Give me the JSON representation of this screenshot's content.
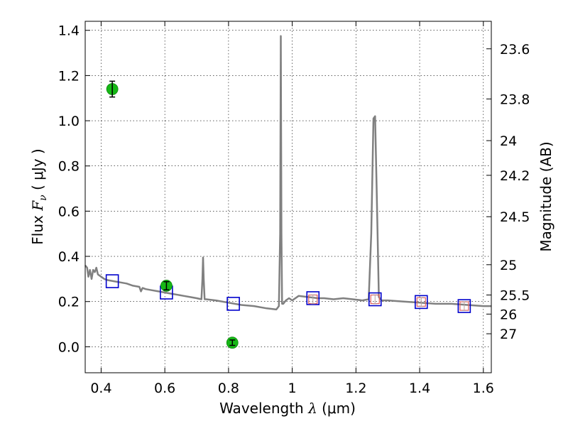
{
  "chart_data": {
    "type": "scatter",
    "xlabel": "Wavelength  λ (μm)",
    "xlabel_parts": {
      "text": "Wavelength  ",
      "symbol": "λ",
      "unit": " (μm)"
    },
    "ylabel": "Flux  Fν  ( μJy )",
    "ylabel_parts": {
      "text": "Flux  ",
      "symbol": "F",
      "subscript": "ν",
      "unit": "  ( μJy )"
    },
    "y2label": "Magnitude (AB)",
    "xlim": [
      0.35,
      1.625
    ],
    "ylim": [
      -0.115,
      1.44
    ],
    "grid": true,
    "x_ticks": [
      {
        "value": 0.4,
        "label": "0.4"
      },
      {
        "value": 0.6,
        "label": "0.6"
      },
      {
        "value": 0.8,
        "label": "0.8"
      },
      {
        "value": 1.0,
        "label": "1"
      },
      {
        "value": 1.2,
        "label": "1.2"
      },
      {
        "value": 1.4,
        "label": "1.4"
      },
      {
        "value": 1.6,
        "label": "1.6"
      }
    ],
    "y_ticks": [
      {
        "value": 0.0,
        "label": "0.0"
      },
      {
        "value": 0.2,
        "label": "0.2"
      },
      {
        "value": 0.4,
        "label": "0.4"
      },
      {
        "value": 0.6,
        "label": "0.6"
      },
      {
        "value": 0.8,
        "label": "0.8"
      },
      {
        "value": 1.0,
        "label": "1.0"
      },
      {
        "value": 1.2,
        "label": "1.2"
      },
      {
        "value": 1.4,
        "label": "1.4"
      }
    ],
    "magnitude_ticks": [
      {
        "value": 23.6,
        "label": "23.6"
      },
      {
        "value": 23.8,
        "label": "23.8"
      },
      {
        "value": 24.0,
        "label": "24"
      },
      {
        "value": 24.2,
        "label": "24.2"
      },
      {
        "value": 24.5,
        "label": "24.5"
      },
      {
        "value": 25.0,
        "label": "25"
      },
      {
        "value": 25.5,
        "label": "25.5"
      },
      {
        "value": 26.0,
        "label": "26"
      },
      {
        "value": 27.0,
        "label": "27"
      }
    ],
    "series": [
      {
        "kind": "model-spectrum",
        "color": "#808080",
        "x": [
          0.35,
          0.356,
          0.36,
          0.365,
          0.37,
          0.375,
          0.38,
          0.385,
          0.39,
          0.4,
          0.41,
          0.42,
          0.44,
          0.46,
          0.48,
          0.5,
          0.52,
          0.525,
          0.53,
          0.54,
          0.56,
          0.58,
          0.6,
          0.62,
          0.64,
          0.66,
          0.68,
          0.7,
          0.715,
          0.718,
          0.72,
          0.722,
          0.725,
          0.73,
          0.76,
          0.8,
          0.84,
          0.88,
          0.92,
          0.95,
          0.958,
          0.962,
          0.964,
          0.966,
          0.968,
          0.972,
          0.98,
          0.99,
          1.0,
          1.02,
          1.05,
          1.08,
          1.1,
          1.13,
          1.16,
          1.19,
          1.22,
          1.24,
          1.248,
          1.255,
          1.26,
          1.265,
          1.272,
          1.28,
          1.3,
          1.35,
          1.4,
          1.45,
          1.5,
          1.55,
          1.6,
          1.625
        ],
        "y": [
          0.36,
          0.35,
          0.31,
          0.34,
          0.3,
          0.34,
          0.33,
          0.35,
          0.32,
          0.31,
          0.3,
          0.295,
          0.29,
          0.285,
          0.28,
          0.27,
          0.265,
          0.245,
          0.26,
          0.255,
          0.25,
          0.245,
          0.24,
          0.235,
          0.23,
          0.225,
          0.22,
          0.215,
          0.21,
          0.3,
          0.395,
          0.3,
          0.21,
          0.21,
          0.205,
          0.195,
          0.185,
          0.18,
          0.17,
          0.165,
          0.18,
          0.5,
          1.375,
          0.5,
          0.19,
          0.19,
          0.205,
          0.215,
          0.205,
          0.225,
          0.22,
          0.215,
          0.215,
          0.21,
          0.215,
          0.21,
          0.205,
          0.21,
          0.5,
          1.01,
          1.02,
          0.7,
          0.22,
          0.205,
          0.205,
          0.2,
          0.195,
          0.19,
          0.19,
          0.185,
          0.18,
          0.18
        ]
      },
      {
        "kind": "observed",
        "marker": "circle",
        "color": "#16b816",
        "points": [
          {
            "x": 0.435,
            "y": 1.14,
            "yerr": 0.035
          },
          {
            "x": 0.605,
            "y": 0.27,
            "yerr": 0.018
          },
          {
            "x": 0.812,
            "y": 0.018,
            "yerr": 0.012
          }
        ]
      },
      {
        "kind": "model-photometry",
        "marker": "square",
        "color": "#0000cc",
        "points": [
          {
            "x": 0.435,
            "y": 0.29
          },
          {
            "x": 0.605,
            "y": 0.24
          },
          {
            "x": 0.815,
            "y": 0.19
          },
          {
            "x": 1.065,
            "y": 0.215
          },
          {
            "x": 1.26,
            "y": 0.21
          },
          {
            "x": 1.405,
            "y": 0.198
          },
          {
            "x": 1.54,
            "y": 0.18
          }
        ]
      },
      {
        "kind": "observed-upper",
        "marker": "square",
        "color": "#e06060",
        "points": [
          {
            "x": 1.065,
            "y": 0.21,
            "yerr": 0.02
          },
          {
            "x": 1.26,
            "y": 0.21,
            "yerr": 0.02
          },
          {
            "x": 1.405,
            "y": 0.198,
            "yerr": 0.02
          },
          {
            "x": 1.54,
            "y": 0.18,
            "yerr": 0.02
          }
        ]
      }
    ]
  }
}
